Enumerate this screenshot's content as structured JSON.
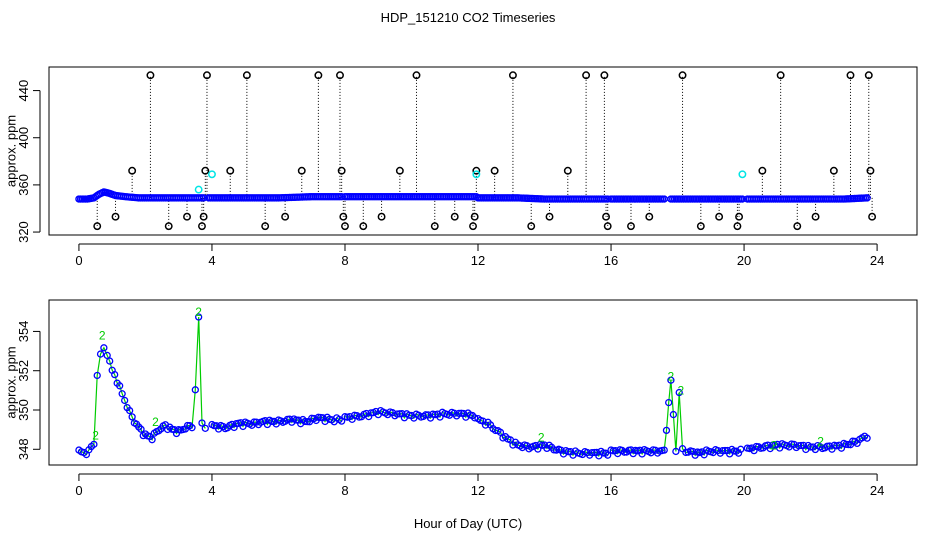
{
  "title": "HDP_151210  CO2 Timeseries",
  "xlabel": "Hour of Day (UTC)",
  "colors": {
    "points": "#0000ff",
    "line": "#00cc00",
    "outlier": "#000000",
    "cyan": "#00e5e5",
    "dotted": "#000000"
  },
  "chart_data": [
    {
      "type": "scatter",
      "name": "top-panel",
      "ylabel": "approx. ppm",
      "xlim": [
        -0.9,
        25.2
      ],
      "ylim": [
        317.5,
        460
      ],
      "xticks": [
        0,
        4,
        8,
        12,
        16,
        20,
        24
      ],
      "yticks": [
        320,
        360,
        400,
        440
      ],
      "ytick_labels": [
        "320",
        "360",
        "400",
        "440"
      ],
      "baseline_series": [
        {
          "x": [
            0.0,
            0.25,
            0.45,
            0.6,
            0.75,
            0.9,
            1.1,
            1.4,
            1.8,
            2.2,
            2.6,
            3.0,
            3.4,
            3.75
          ],
          "y": [
            348,
            348,
            349,
            352,
            354,
            353,
            351,
            350,
            349,
            349,
            349,
            349,
            349,
            349
          ]
        },
        {
          "x": [
            3.9,
            5.0,
            6.0,
            7.0,
            7.9
          ],
          "y": [
            349,
            349,
            349,
            350,
            350
          ]
        },
        {
          "x": [
            8.0,
            9.0,
            10.0,
            11.0,
            11.95
          ],
          "y": [
            350,
            350,
            350,
            350,
            350
          ]
        },
        {
          "x": [
            12.0,
            12.6,
            13.2,
            14.0,
            15.0,
            15.9
          ],
          "y": [
            349,
            349,
            349,
            348,
            348,
            348
          ]
        },
        {
          "x": [
            16.0,
            16.8,
            17.6
          ],
          "y": [
            348,
            348,
            348
          ]
        },
        {
          "x": [
            17.8,
            18.5,
            19.2,
            19.95
          ],
          "y": [
            348,
            348,
            348,
            348
          ]
        },
        {
          "x": [
            20.1,
            21.0,
            22.0,
            23.0,
            23.7
          ],
          "y": [
            348,
            348,
            348,
            348,
            349
          ]
        }
      ],
      "outliers": {
        "x": [
          0.55,
          1.1,
          1.6,
          2.15,
          2.7,
          3.25,
          3.7,
          3.75,
          3.8,
          3.85,
          4.55,
          5.05,
          5.6,
          6.2,
          6.7,
          7.2,
          7.85,
          7.9,
          7.95,
          8.0,
          8.55,
          9.1,
          9.65,
          10.15,
          10.7,
          11.3,
          11.85,
          11.9,
          11.95,
          12.5,
          13.05,
          13.6,
          14.15,
          14.7,
          15.25,
          15.8,
          15.85,
          15.9,
          16.6,
          17.15,
          18.15,
          18.7,
          19.25,
          19.8,
          19.85,
          20.55,
          21.1,
          21.6,
          22.15,
          22.7,
          23.2,
          23.75,
          23.8,
          23.85
        ],
        "y": [
          325,
          333,
          372,
          453,
          325,
          333,
          325,
          333,
          372,
          453,
          372,
          453,
          325,
          333,
          372,
          453,
          453,
          372,
          333,
          325,
          325,
          333,
          372,
          453,
          325,
          333,
          325,
          333,
          372,
          372,
          453,
          325,
          333,
          372,
          453,
          453,
          333,
          325,
          325,
          333,
          453,
          325,
          333,
          325,
          333,
          372,
          453,
          325,
          333,
          372,
          453,
          453,
          372,
          333
        ]
      },
      "cyan_points": {
        "x": [
          3.6,
          4.0,
          11.95,
          19.95
        ],
        "y": [
          356,
          369,
          369,
          369
        ]
      }
    },
    {
      "type": "line",
      "name": "bottom-panel",
      "ylabel": "approx. ppm",
      "xlim": [
        -0.9,
        25.2
      ],
      "ylim": [
        347.2,
        355.6
      ],
      "xticks": [
        0,
        4,
        8,
        12,
        16,
        20,
        24
      ],
      "xtick_labels": [
        "0",
        "4",
        "8",
        "12",
        "16",
        "20",
        "24"
      ],
      "yticks": [
        348,
        350,
        352,
        354
      ],
      "ytick_labels": [
        "348",
        "350",
        "352",
        "354"
      ],
      "series": [
        {
          "name": "segment-1",
          "x": [
            0.0,
            0.15,
            0.3,
            0.45,
            0.55,
            0.65,
            0.75,
            0.85,
            1.0,
            1.15,
            1.3,
            1.45,
            1.6,
            1.8,
            2.0,
            2.2,
            2.4,
            2.6,
            2.8,
            3.0,
            3.2,
            3.4,
            3.5,
            3.6,
            3.7,
            3.8
          ],
          "y": [
            347.9,
            347.8,
            347.9,
            348.3,
            351.8,
            352.8,
            353.1,
            352.9,
            352.0,
            351.5,
            350.8,
            350.2,
            349.6,
            349.1,
            348.7,
            348.6,
            349.0,
            349.2,
            349.0,
            348.9,
            349.1,
            349.2,
            351.0,
            354.7,
            349.3,
            349.2
          ]
        },
        {
          "name": "segment-2",
          "x": [
            4.0,
            4.4,
            4.8,
            5.2,
            5.6,
            6.0,
            6.4,
            6.8,
            7.2,
            7.6,
            7.9
          ],
          "y": [
            349.2,
            349.1,
            349.3,
            349.3,
            349.4,
            349.4,
            349.5,
            349.4,
            349.6,
            349.5,
            349.5
          ]
        },
        {
          "name": "segment-3",
          "x": [
            8.0,
            8.5,
            9.0,
            9.5,
            10.0,
            10.5,
            11.0,
            11.5,
            11.9
          ],
          "y": [
            349.6,
            349.7,
            349.9,
            349.8,
            349.7,
            349.7,
            349.8,
            349.8,
            349.7
          ]
        },
        {
          "name": "segment-4",
          "x": [
            12.0,
            12.3,
            12.6,
            12.9,
            13.2,
            13.6,
            14.0,
            14.5,
            15.0,
            15.5,
            15.9
          ],
          "y": [
            349.5,
            349.3,
            348.9,
            348.5,
            348.2,
            348.1,
            348.2,
            347.9,
            347.8,
            347.8,
            347.8
          ]
        },
        {
          "name": "segment-5",
          "x": [
            16.0,
            16.4,
            16.8,
            17.2,
            17.6,
            17.8,
            17.95,
            18.05,
            18.15,
            18.25,
            18.6,
            19.0,
            19.5,
            19.9
          ],
          "y": [
            347.9,
            347.9,
            347.9,
            347.9,
            347.9,
            351.5,
            348.0,
            350.8,
            348.0,
            347.9,
            347.8,
            347.9,
            347.9,
            347.9
          ]
        },
        {
          "name": "segment-6",
          "x": [
            20.1,
            20.5,
            21.0,
            21.5,
            22.0,
            22.5,
            23.0,
            23.4,
            23.7
          ],
          "y": [
            348.0,
            348.1,
            348.2,
            348.2,
            348.1,
            348.1,
            348.2,
            348.4,
            348.7
          ]
        }
      ],
      "flag_labels": [
        {
          "x": 0.5,
          "y": 348.7,
          "text": "2"
        },
        {
          "x": 0.7,
          "y": 353.8,
          "text": "2"
        },
        {
          "x": 2.3,
          "y": 349.4,
          "text": "2"
        },
        {
          "x": 3.6,
          "y": 355.0,
          "text": "2"
        },
        {
          "x": 13.9,
          "y": 348.6,
          "text": "2"
        },
        {
          "x": 17.8,
          "y": 351.7,
          "text": "2"
        },
        {
          "x": 18.1,
          "y": 351.0,
          "text": "2"
        },
        {
          "x": 20.9,
          "y": 348.2,
          "text": "2"
        },
        {
          "x": 22.3,
          "y": 348.4,
          "text": "2"
        }
      ]
    }
  ]
}
